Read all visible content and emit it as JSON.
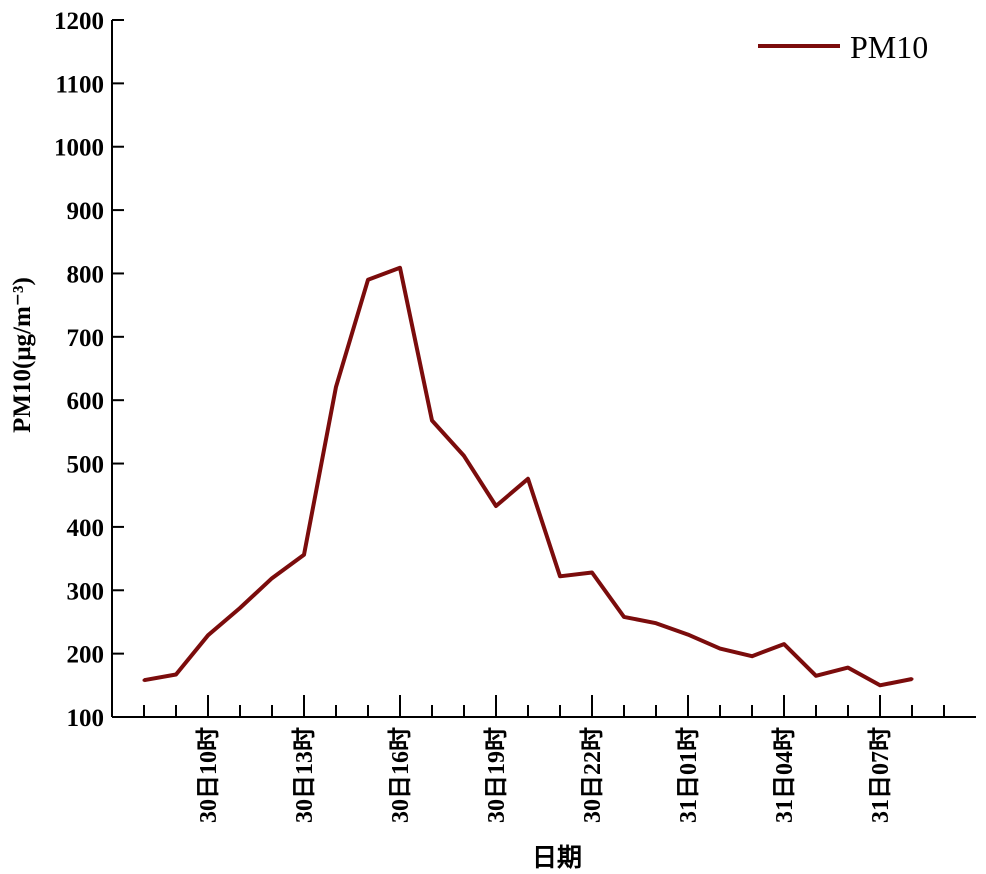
{
  "chart_data": {
    "type": "line",
    "xlabel": "日期",
    "ylabel": "PM10(μg/m⁻³)",
    "ylim": [
      100,
      1200
    ],
    "yticks": [
      100,
      200,
      300,
      400,
      500,
      600,
      700,
      800,
      900,
      1000,
      1100,
      1200
    ],
    "xlim": [
      7,
      34
    ],
    "xticks": [
      {
        "x": 10,
        "label": "30日10时"
      },
      {
        "x": 13,
        "label": "30日13时"
      },
      {
        "x": 16,
        "label": "30日16时"
      },
      {
        "x": 19,
        "label": "30日19时"
      },
      {
        "x": 22,
        "label": "30日22时"
      },
      {
        "x": 25,
        "label": "31日01时"
      },
      {
        "x": 28,
        "label": "31日04时"
      },
      {
        "x": 31,
        "label": "31日07时"
      }
    ],
    "grid": false,
    "legend_position": "top-right",
    "series": [
      {
        "name": "PM10",
        "color": "#7b0c0c",
        "x": [
          8,
          9,
          10,
          11,
          12,
          13,
          14,
          15,
          16,
          17,
          18,
          19,
          20,
          21,
          22,
          23,
          24,
          25,
          26,
          27,
          28,
          29,
          30,
          31,
          32
        ],
        "values": [
          158,
          167,
          229,
          272,
          319,
          356,
          621,
          790,
          809,
          568,
          512,
          433,
          476,
          322,
          328,
          258,
          248,
          230,
          208,
          196,
          215,
          165,
          178,
          150,
          160
        ]
      }
    ]
  }
}
